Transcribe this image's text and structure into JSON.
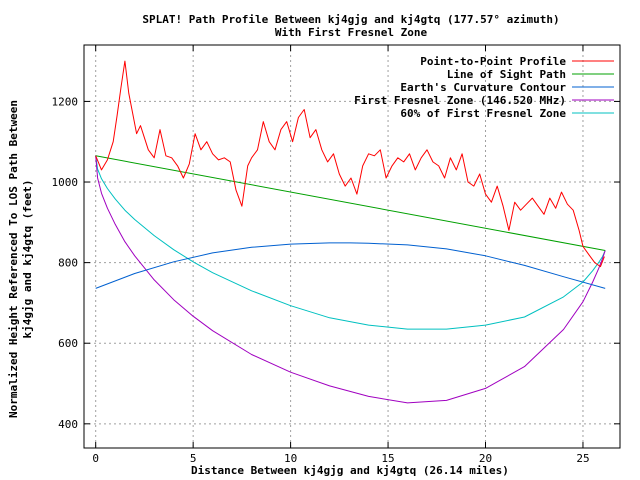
{
  "chart_data": {
    "type": "line",
    "title": "SPLAT! Path Profile Between kj4gjg and kj4gtq (177.57° azimuth)",
    "subtitle": "With First Fresnel Zone",
    "xlabel": "Distance Between kj4gjg and kj4gtq (26.14 miles)",
    "ylabel_line1": "Normalized Height Referenced To LOS Path Between",
    "ylabel_line2": "kj4gjg and kj4gtq (feet)",
    "xlim": [
      -0.6,
      26.9
    ],
    "ylim": [
      340,
      1340
    ],
    "x_ticks": [
      0,
      5,
      10,
      15,
      20,
      25
    ],
    "y_ticks": [
      400,
      600,
      800,
      1000,
      1200
    ],
    "grid": true,
    "legend_position": "top-right",
    "series": [
      {
        "name": "Point-to-Point Profile",
        "color": "#ff0000",
        "x": [
          0,
          0.3,
          0.6,
          0.9,
          1.1,
          1.3,
          1.5,
          1.7,
          1.9,
          2.1,
          2.3,
          2.5,
          2.7,
          3.0,
          3.3,
          3.6,
          3.9,
          4.2,
          4.5,
          4.8,
          5.1,
          5.4,
          5.7,
          6.0,
          6.3,
          6.6,
          6.9,
          7.2,
          7.5,
          7.8,
          8.0,
          8.3,
          8.6,
          8.9,
          9.2,
          9.5,
          9.8,
          10.1,
          10.4,
          10.7,
          11.0,
          11.3,
          11.6,
          11.9,
          12.2,
          12.5,
          12.8,
          13.1,
          13.4,
          13.7,
          14.0,
          14.3,
          14.6,
          14.9,
          15.2,
          15.5,
          15.8,
          16.1,
          16.4,
          16.7,
          17.0,
          17.3,
          17.6,
          17.9,
          18.2,
          18.5,
          18.8,
          19.1,
          19.4,
          19.7,
          20.0,
          20.3,
          20.6,
          20.9,
          21.2,
          21.5,
          21.8,
          22.1,
          22.4,
          22.7,
          23.0,
          23.3,
          23.6,
          23.9,
          24.2,
          24.5,
          24.8,
          25.0,
          25.3,
          25.6,
          25.9,
          26.1
        ],
        "values": [
          1065,
          1030,
          1055,
          1100,
          1165,
          1235,
          1300,
          1220,
          1170,
          1120,
          1140,
          1110,
          1080,
          1060,
          1130,
          1065,
          1060,
          1040,
          1010,
          1045,
          1120,
          1080,
          1100,
          1070,
          1055,
          1060,
          1050,
          980,
          940,
          1040,
          1060,
          1080,
          1150,
          1100,
          1080,
          1130,
          1150,
          1100,
          1160,
          1180,
          1110,
          1130,
          1080,
          1050,
          1070,
          1020,
          990,
          1010,
          970,
          1040,
          1070,
          1065,
          1080,
          1010,
          1040,
          1060,
          1050,
          1070,
          1030,
          1060,
          1080,
          1050,
          1040,
          1010,
          1060,
          1030,
          1070,
          1000,
          990,
          1020,
          970,
          950,
          990,
          940,
          880,
          950,
          930,
          945,
          960,
          940,
          920,
          960,
          935,
          975,
          945,
          930,
          880,
          840,
          820,
          800,
          790,
          815
        ]
      },
      {
        "name": "Line of Sight Path",
        "color": "#00a000",
        "x": [
          0,
          26.14
        ],
        "values": [
          1065,
          830
        ]
      },
      {
        "name": "Earth's Curvature Contour",
        "color": "#0060d0",
        "x": [
          0,
          2,
          4,
          6,
          8,
          10,
          12,
          13.07,
          14,
          16,
          18,
          20,
          22,
          24,
          26.14
        ],
        "values": [
          736,
          773,
          802,
          824,
          838,
          846,
          849,
          849,
          848,
          844,
          834,
          817,
          793,
          765,
          736
        ]
      },
      {
        "name": "First Fresnel Zone (146.520 MHz)",
        "color": "#a000c0",
        "x": [
          0,
          0.1,
          0.3,
          0.6,
          1,
          1.5,
          2,
          3,
          4,
          5,
          6,
          8,
          10,
          12,
          14,
          16,
          18,
          20,
          22,
          24,
          25,
          25.5,
          25.8,
          26.0,
          26.14
        ],
        "values": [
          1065,
          1010,
          972,
          935,
          895,
          852,
          817,
          757,
          708,
          667,
          631,
          572,
          528,
          494,
          468,
          452,
          458,
          488,
          542,
          634,
          703,
          752,
          785,
          810,
          830
        ]
      },
      {
        "name": "60% of First Fresnel Zone",
        "color": "#00c0c0",
        "x": [
          0,
          0.1,
          0.3,
          0.6,
          1,
          1.5,
          2,
          3,
          4,
          5,
          6,
          8,
          10,
          12,
          14,
          16,
          18,
          20,
          22,
          24,
          25,
          25.5,
          25.8,
          26.0,
          26.14
        ],
        "values": [
          1065,
          1032,
          1008,
          984,
          958,
          930,
          907,
          867,
          832,
          802,
          775,
          730,
          693,
          663,
          645,
          635,
          635,
          645,
          665,
          715,
          752,
          780,
          800,
          815,
          830
        ]
      }
    ]
  }
}
